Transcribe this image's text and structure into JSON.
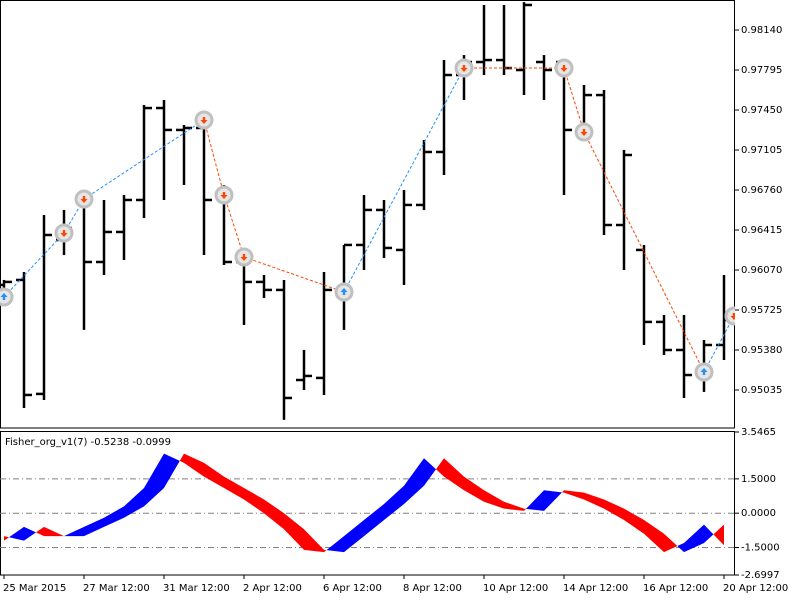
{
  "chart_data": [
    {
      "type": "ohlc",
      "open": [
        0.95941,
        0.95984,
        0.95001,
        0.96329,
        0.96674,
        0.96139,
        0.96398,
        0.96674,
        0.97467,
        0.97278,
        0.97295,
        0.96691,
        0.96139,
        0.95967,
        0.95898,
        0.95121,
        0.95139,
        0.9588,
        0.96286,
        0.96588,
        0.96243,
        0.96631,
        0.97088,
        0.97752,
        0.97864,
        0.97881,
        0.97795,
        0.97864,
        0.97864,
        0.97278,
        0.97579,
        0.96458,
        0.96243,
        0.95622,
        0.9538,
        0.9519,
        0.95423
      ],
      "high": [
        0.95984,
        0.96053,
        0.96544,
        0.96588,
        0.9676,
        0.96674,
        0.96717,
        0.97493,
        0.97536,
        0.97321,
        0.97433,
        0.96803,
        0.96243,
        0.96027,
        0.95984,
        0.9538,
        0.96053,
        0.96286,
        0.96717,
        0.96674,
        0.9676,
        0.97191,
        0.97881,
        0.97924,
        0.98356,
        0.98356,
        0.98381,
        0.97924,
        0.97881,
        0.97666,
        0.97623,
        0.97105,
        0.96286,
        0.95682,
        0.95682,
        0.95466,
        0.96027
      ],
      "low": [
        0.95811,
        0.9488,
        0.94949,
        0.96199,
        0.95553,
        0.96027,
        0.96156,
        0.96519,
        0.96674,
        0.96803,
        0.96199,
        0.96113,
        0.95596,
        0.95829,
        0.94777,
        0.95035,
        0.94992,
        0.95553,
        0.9607,
        0.96174,
        0.95941,
        0.96588,
        0.96889,
        0.97536,
        0.97752,
        0.97752,
        0.97579,
        0.97536,
        0.96717,
        0.97191,
        0.96372,
        0.9607,
        0.95423,
        0.95337,
        0.94966,
        0.95018,
        0.95294
      ],
      "close": [
        0.95967,
        0.94992,
        0.96372,
        0.96432,
        0.96139,
        0.96398,
        0.96674,
        0.97467,
        0.97278,
        0.97295,
        0.96674,
        0.96139,
        0.95967,
        0.95898,
        0.94966,
        0.95156,
        0.95898,
        0.96286,
        0.96588,
        0.9626,
        0.96631,
        0.97088,
        0.97752,
        0.97864,
        0.97881,
        0.97812,
        0.98356,
        0.97795,
        0.97278,
        0.97579,
        0.96458,
        0.97062,
        0.95622,
        0.9538,
        0.95164,
        0.95423,
        0.95639
      ],
      "color": "#000000",
      "zigzag": {
        "x": [
          0,
          3,
          4,
          10,
          11,
          12,
          17,
          23,
          28,
          29,
          35,
          36.5
        ],
        "values": [
          0.95837,
          0.96389,
          0.96682,
          0.97364,
          0.96717,
          0.96182,
          0.9588,
          0.97812,
          0.97812,
          0.9726,
          0.9519,
          0.95673
        ],
        "up_color": "#1e90ff",
        "down_color": "#ff4500",
        "marker_color": "#c0c0c0"
      },
      "ylim": [
        0.94707,
        0.98399
      ],
      "yticks": [
        {
          "value": 0.9814,
          "label": "0.98140"
        },
        0.97795,
        {
          "value": 0.9745,
          "label": "0.97450"
        },
        0.97105,
        {
          "value": 0.9676,
          "label": "0.96760"
        },
        0.96415,
        {
          "value": 0.9607,
          "label": "0.96070"
        },
        0.95725,
        {
          "value": 0.9538,
          "label": "0.95380"
        },
        0.95035
      ]
    },
    {
      "type": "filling",
      "title": "Fisher_org_v1(7) -0.5238 -0.0999",
      "categories": [
        "25 Mar 2015",
        null,
        null,
        null,
        "27 Mar 12:00",
        null,
        null,
        null,
        "31 Mar 12:00",
        null,
        null,
        null,
        "2 Apr 12:00",
        null,
        null,
        null,
        "6 Apr 12:00",
        null,
        null,
        null,
        "8 Apr 12:00",
        null,
        null,
        null,
        "10 Apr 12:00",
        null,
        null,
        null,
        "14 Apr 12:00",
        null,
        null,
        null,
        "16 Apr 12:00",
        null,
        null,
        null,
        "20 Apr 12:00"
      ],
      "series": [
        {
          "values": [
            -1.2,
            -0.6,
            -1.0,
            -1.0,
            -0.6,
            -0.2,
            0.3,
            1.1,
            2.6,
            2.2,
            1.6,
            1.1,
            0.6,
            0.0,
            -0.7,
            -1.6,
            -1.7,
            -1.0,
            -0.3,
            0.4,
            1.2,
            2.4,
            1.6,
            1.0,
            0.5,
            0.2,
            0.1,
            1.0,
            0.9,
            0.6,
            0.2,
            -0.3,
            -0.9,
            -1.7,
            -1.3,
            -0.5,
            -1.4
          ]
        },
        {
          "values": [
            -1.0,
            -1.2,
            -0.6,
            -1.0,
            -1.0,
            -0.6,
            -0.2,
            0.3,
            1.1,
            2.6,
            2.2,
            1.6,
            1.1,
            0.6,
            0.0,
            -0.7,
            -1.6,
            -1.7,
            -1.0,
            -0.3,
            0.4,
            1.2,
            2.4,
            1.6,
            1.0,
            0.5,
            0.2,
            0.1,
            1.0,
            0.9,
            0.6,
            0.2,
            -0.3,
            -0.9,
            -1.7,
            -1.3,
            -0.5
          ]
        }
      ],
      "up_color": "#0000ff",
      "down_color": "#ff0000",
      "ylim": [
        -2.6997,
        3.5465
      ],
      "yticks": [
        3.5465,
        {
          "value": 1.5,
          "label": "1.5000"
        },
        {
          "value": 0,
          "label": "0.0000"
        },
        {
          "value": -1.5,
          "label": "-1.5000"
        },
        -2.6997
      ],
      "grid": true
    }
  ]
}
